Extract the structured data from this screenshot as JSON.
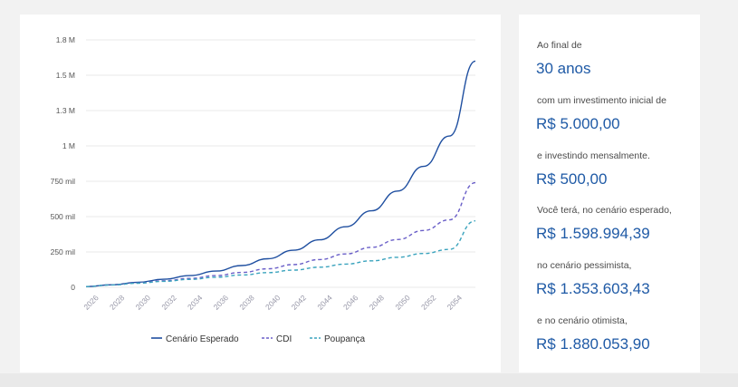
{
  "colors": {
    "esperado": "#1f4fa0",
    "cdi": "#6a5fc8",
    "poupanca": "#3aa3bd",
    "value_text": "#1f5aa6"
  },
  "summary": {
    "label_final": "Ao final de",
    "period": "30 anos",
    "label_initial": "com um investimento inicial de",
    "initial_amount": "R$ 5.000,00",
    "label_monthly": "e investindo mensalmente.",
    "monthly_amount": "R$ 500,00",
    "label_expected": "Você terá, no cenário esperado,",
    "expected_amount": "R$ 1.598.994,39",
    "label_pessimistic": "no cenário pessimista,",
    "pessimistic_amount": "R$ 1.353.603,43",
    "label_optimistic": "e no cenário otimista,",
    "optimistic_amount": "R$ 1.880.053,90"
  },
  "chart_data": {
    "type": "line",
    "x_ticks": [
      "2026",
      "2028",
      "2030",
      "2032",
      "2034",
      "2036",
      "2038",
      "2040",
      "2042",
      "2044",
      "2046",
      "2048",
      "2050",
      "2052",
      "2054"
    ],
    "y_ticks": [
      "0",
      "250 mil",
      "500 mil",
      "750 mil",
      "1 M",
      "1.3 M",
      "1.5 M",
      "1.8 M"
    ],
    "y_tick_values": [
      0,
      250000,
      500000,
      750000,
      1000000,
      1250000,
      1500000,
      1750000
    ],
    "xlim": [
      2025,
      2055
    ],
    "ylim": [
      0,
      1750000
    ],
    "grid": true,
    "legend_position": "bottom",
    "x": [
      2025,
      2027,
      2029,
      2031,
      2033,
      2035,
      2037,
      2039,
      2041,
      2043,
      2045,
      2047,
      2049,
      2051,
      2053,
      2055
    ],
    "series": [
      {
        "name": "Cenário Esperado",
        "style": "solid",
        "values": [
          5000,
          18000,
          36000,
          57000,
          83000,
          115000,
          154000,
          202000,
          262000,
          336000,
          428000,
          541000,
          681000,
          855000,
          1070000,
          1600000
        ]
      },
      {
        "name": "CDI",
        "style": "dashed",
        "values": [
          5000,
          17000,
          31000,
          46000,
          63000,
          83000,
          105000,
          131000,
          161000,
          196000,
          236000,
          283000,
          338000,
          402000,
          477000,
          740000
        ]
      },
      {
        "name": "Poupança",
        "style": "dashed",
        "values": [
          5000,
          16500,
          29000,
          42000,
          56000,
          71000,
          87000,
          104000,
          122000,
          142000,
          164000,
          187000,
          212000,
          239000,
          268000,
          470000
        ]
      }
    ]
  }
}
